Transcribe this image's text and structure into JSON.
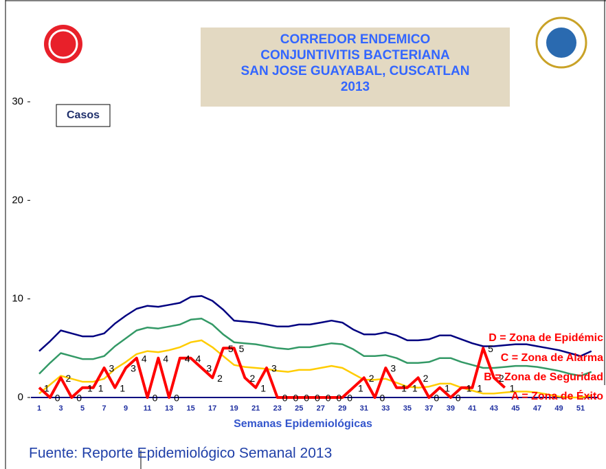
{
  "chart_data": {
    "type": "line",
    "title_lines": [
      "CORREDOR ENDEMICO",
      "CONJUNTIVITIS BACTERIANA",
      "SAN JOSE GUAYABAL, CUSCATLAN",
      "2013"
    ],
    "y_label": "Casos",
    "x_label": "Semanas Epidemiológicas",
    "source": "Fuente: Reporte Epidemiológico Semanal  2013",
    "zone_labels": [
      "D = Zona de Epidémic",
      "C = Zona de Alarma",
      "B = Zona de Seguridad",
      "A = Zona de Éxito"
    ],
    "zone_label_color": "#ff0000",
    "categories": [
      1,
      null,
      3,
      null,
      5,
      null,
      7,
      null,
      9,
      null,
      11,
      null,
      13,
      null,
      15,
      null,
      17,
      null,
      19,
      null,
      21,
      null,
      23,
      null,
      25,
      null,
      27,
      null,
      29,
      null,
      31,
      null,
      33,
      null,
      35,
      null,
      37,
      null,
      39,
      null,
      41,
      null,
      43,
      null,
      45,
      null,
      47,
      null,
      49,
      null,
      51,
      null
    ],
    "ylim": [
      0,
      30
    ],
    "yticks": [
      0,
      10,
      20,
      30
    ],
    "series": [
      {
        "name": "D",
        "color": "#000080",
        "width": 2.5,
        "values": [
          4.7,
          5.7,
          6.8,
          6.5,
          6.2,
          6.2,
          6.5,
          7.5,
          8.3,
          9,
          9.3,
          9.2,
          9.4,
          9.6,
          10.2,
          10.3,
          9.8,
          8.9,
          7.8,
          7.7,
          7.6,
          7.4,
          7.2,
          7.2,
          7.4,
          7.4,
          7.6,
          7.8,
          7.6,
          6.9,
          6.4,
          6.4,
          6.6,
          6.3,
          5.8,
          5.8,
          5.9,
          6.3,
          6.3,
          5.9,
          5.5,
          5.2,
          5.2,
          5.3,
          5.4,
          5.4,
          5.2,
          5.0,
          4.8,
          4.5,
          4.2,
          4.7
        ]
      },
      {
        "name": "C",
        "color": "#339966",
        "width": 2.5,
        "values": [
          2.4,
          3.5,
          4.5,
          4.2,
          3.9,
          3.9,
          4.2,
          5.2,
          6,
          6.8,
          7.1,
          7.0,
          7.2,
          7.4,
          7.9,
          8.0,
          7.4,
          6.4,
          5.6,
          5.5,
          5.4,
          5.2,
          5.0,
          4.9,
          5.1,
          5.1,
          5.3,
          5.5,
          5.4,
          4.9,
          4.2,
          4.2,
          4.3,
          4.0,
          3.5,
          3.5,
          3.6,
          4.0,
          4.0,
          3.6,
          3.3,
          3.0,
          3.0,
          3.1,
          3.2,
          3.2,
          3.1,
          2.9,
          2.7,
          2.4,
          2.2,
          2.6
        ]
      },
      {
        "name": "B",
        "color": "#ffcc00",
        "width": 2.5,
        "values": [
          0.4,
          1.3,
          2.2,
          1.9,
          1.6,
          1.6,
          1.9,
          2.9,
          3.6,
          4.4,
          4.7,
          4.6,
          4.8,
          5.1,
          5.6,
          5.8,
          5.1,
          4.2,
          3.3,
          3.1,
          3.0,
          2.9,
          2.7,
          2.6,
          2.8,
          2.8,
          3.0,
          3.2,
          3.0,
          2.4,
          1.8,
          1.8,
          1.9,
          1.5,
          1.1,
          1.0,
          1.1,
          1.4,
          1.4,
          1.0,
          0.7,
          0.4,
          0.4,
          0.5,
          0.6,
          0.6,
          0.5,
          0.3,
          0.1,
          0,
          0,
          0.2
        ]
      },
      {
        "name": "Casos",
        "color": "#ff0000",
        "width": 4,
        "labels": true,
        "values": [
          1,
          0,
          2,
          0,
          1,
          1,
          3,
          1,
          3,
          4,
          0,
          4,
          0,
          4,
          4,
          3,
          2,
          5,
          5,
          2,
          1,
          3,
          0,
          0,
          0,
          0,
          0,
          0,
          0,
          1,
          2,
          0,
          3,
          1,
          1,
          2,
          0,
          1,
          0,
          1,
          1,
          5,
          2,
          1,
          null,
          null,
          null,
          null,
          null,
          null,
          null,
          null
        ]
      }
    ]
  }
}
